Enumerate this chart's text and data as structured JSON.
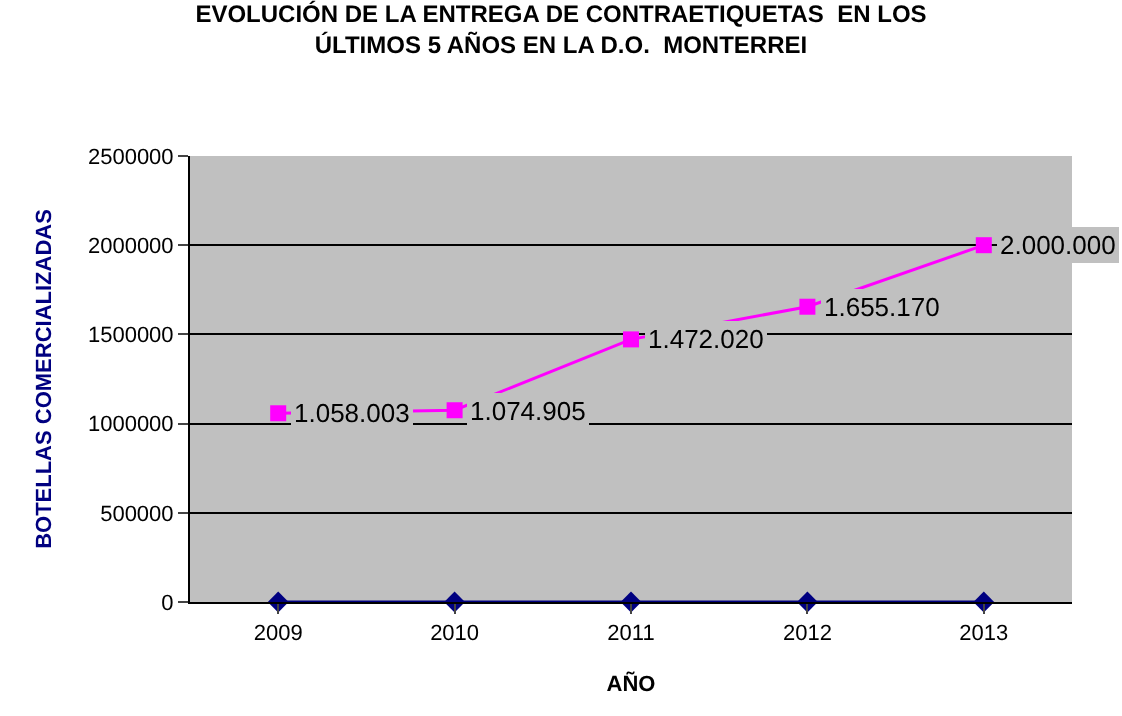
{
  "chart_data": {
    "type": "line",
    "title": "EVOLUCIÓN DE LA ENTREGA DE CONTRAETIQUETAS  EN LOS\nÚLTIMOS 5 AÑOS EN LA D.O.  MONTERREI",
    "xlabel": "AÑO",
    "ylabel": "BOTELLAS COMERCIALIZADAS",
    "categories": [
      "2009",
      "2010",
      "2011",
      "2012",
      "2013"
    ],
    "series": [
      {
        "color": "#000080",
        "marker": "diamond",
        "values": [
          0,
          0,
          0,
          0,
          0
        ]
      },
      {
        "color": "#ff00ff",
        "marker": "square",
        "values": [
          1058003,
          1074905,
          1472020,
          1655170,
          2000000
        ],
        "value_labels": [
          "1.058.003",
          "1.074.905",
          "1.472.020",
          "1.655.170",
          "2.000.000"
        ]
      }
    ],
    "ylim": [
      0,
      2500000
    ],
    "yticks": [
      0,
      500000,
      1000000,
      1500000,
      2000000,
      2500000
    ],
    "grid": "y"
  }
}
